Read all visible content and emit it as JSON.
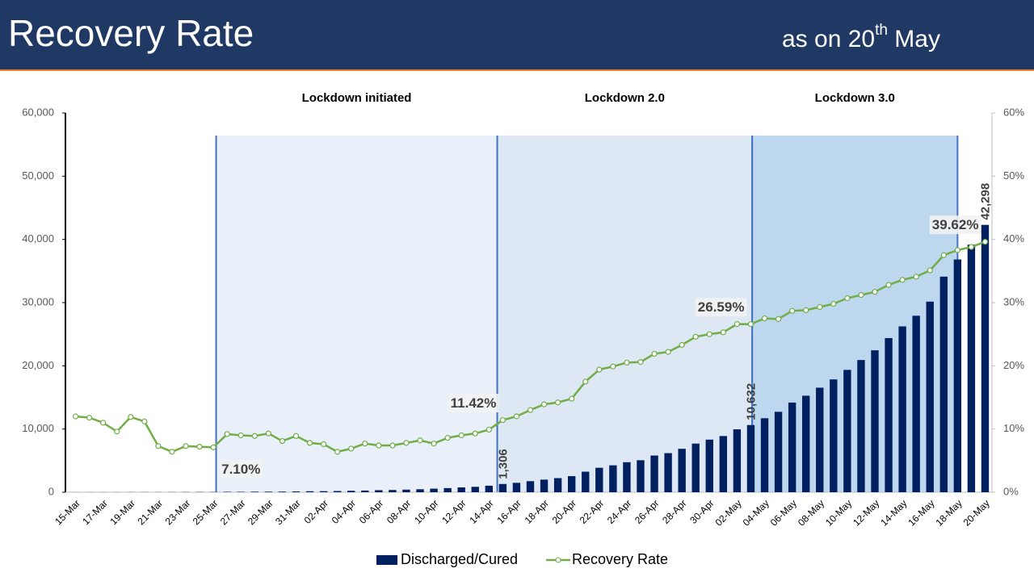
{
  "header": {
    "title": "Recovery Rate",
    "subtitle": {
      "before": "as on 20",
      "superscript": "th",
      "after": " May"
    }
  },
  "chart_data": {
    "type": "bar_line",
    "categories": [
      "15-Mar",
      null,
      "17-Mar",
      null,
      "19-Mar",
      null,
      "21-Mar",
      null,
      "23-Mar",
      null,
      "25-Mar",
      null,
      "27-Mar",
      null,
      "29-Mar",
      null,
      "31-Mar",
      null,
      "02-Apr",
      null,
      "04-Apr",
      null,
      "06-Apr",
      null,
      "08-Apr",
      null,
      "10-Apr",
      null,
      "12-Apr",
      null,
      "14-Apr",
      null,
      "16-Apr",
      null,
      "18-Apr",
      null,
      "20-Apr",
      null,
      "22-Apr",
      null,
      "24-Apr",
      null,
      "26-Apr",
      null,
      "28-Apr",
      null,
      "30-Apr",
      null,
      "02-May",
      null,
      "04-May",
      null,
      "06-May",
      null,
      "08-May",
      null,
      "10-May",
      null,
      "12-May",
      null,
      "14-May",
      null,
      "16-May",
      null,
      "18-May",
      null,
      "20-May"
    ],
    "series": [
      {
        "name": "Discharged/Cured",
        "type": "bar",
        "color": "#002060",
        "values": [
          13,
          14,
          15,
          14,
          20,
          23,
          23,
          27,
          35,
          40,
          43,
          66,
          67,
          85,
          96,
          102,
          124,
          156,
          169,
          191,
          229,
          267,
          325,
          352,
          411,
          473,
          565,
          654,
          768,
          857,
          1036,
          1306,
          1489,
          1749,
          1992,
          2231,
          2546,
          3252,
          3869,
          4258,
          4749,
          5063,
          5804,
          6185,
          6869,
          7696,
          8325,
          8889,
          9951,
          10632,
          11707,
          12727,
          14183,
          15267,
          16540,
          17847,
          19358,
          20917,
          22455,
          24386,
          26235,
          27920,
          30153,
          34109,
          36824,
          39174,
          42298
        ],
        "value_labels": [
          null,
          null,
          null,
          null,
          null,
          null,
          null,
          null,
          null,
          null,
          null,
          null,
          null,
          null,
          null,
          null,
          null,
          null,
          null,
          null,
          null,
          null,
          null,
          null,
          null,
          null,
          null,
          null,
          null,
          null,
          null,
          "1,306",
          null,
          null,
          null,
          null,
          null,
          null,
          null,
          null,
          null,
          null,
          null,
          null,
          null,
          null,
          null,
          null,
          null,
          "10,632",
          null,
          null,
          null,
          null,
          null,
          null,
          null,
          null,
          null,
          null,
          null,
          null,
          null,
          null,
          null,
          null,
          "42,298"
        ]
      },
      {
        "name": "Recovery Rate",
        "type": "line",
        "axis": "y2",
        "color": "#70ad47",
        "values": [
          12.0,
          11.8,
          11.0,
          9.6,
          11.9,
          11.2,
          7.3,
          6.4,
          7.3,
          7.2,
          7.1,
          9.2,
          9.0,
          8.9,
          9.3,
          8.1,
          8.9,
          7.8,
          7.6,
          6.4,
          6.9,
          7.7,
          7.4,
          7.4,
          7.8,
          8.2,
          7.7,
          8.6,
          9.0,
          9.3,
          9.9,
          11.42,
          12.0,
          13.0,
          13.9,
          14.2,
          14.8,
          17.5,
          19.4,
          19.9,
          20.5,
          20.6,
          21.9,
          22.2,
          23.3,
          24.6,
          25.0,
          25.3,
          26.6,
          26.59,
          27.5,
          27.4,
          28.7,
          28.8,
          29.3,
          29.8,
          30.7,
          31.2,
          31.7,
          32.8,
          33.6,
          34.1,
          35.1,
          37.5,
          38.3,
          38.8,
          39.62
        ],
        "value_labels": [
          null,
          null,
          null,
          null,
          null,
          null,
          null,
          null,
          null,
          null,
          "7.10%",
          null,
          null,
          null,
          null,
          null,
          null,
          null,
          null,
          null,
          null,
          null,
          null,
          null,
          null,
          null,
          null,
          null,
          null,
          null,
          null,
          "11.42%",
          null,
          null,
          null,
          null,
          null,
          null,
          null,
          null,
          null,
          null,
          null,
          null,
          null,
          null,
          null,
          null,
          null,
          "26.59%",
          null,
          null,
          null,
          null,
          null,
          null,
          null,
          null,
          null,
          null,
          null,
          null,
          null,
          null,
          null,
          null,
          "39.62%"
        ]
      }
    ],
    "ylim": [
      0,
      60000
    ],
    "yticks": [
      0,
      {
        "value": 10000,
        "label": "10,000"
      },
      {
        "value": 20000,
        "label": "20,000"
      },
      {
        "value": 30000,
        "label": "30,000"
      },
      {
        "value": 40000,
        "label": "40,000"
      },
      {
        "value": 50000,
        "label": "50,000"
      },
      {
        "value": 60000,
        "label": "60,000"
      }
    ],
    "y2lim": [
      0,
      60
    ],
    "y2ticks": [
      {
        "value": 0,
        "label": "0%"
      },
      {
        "value": 10,
        "label": "10%"
      },
      {
        "value": 20,
        "label": "20%"
      },
      {
        "value": 30,
        "label": "30%"
      },
      {
        "value": 40,
        "label": "40%"
      },
      {
        "value": 50,
        "label": "50%"
      },
      {
        "value": 60,
        "label": "60%"
      }
    ],
    "shaded_regions": [
      {
        "label": "Lockdown initiated",
        "start": 10.7,
        "end": 31.1,
        "color": "#e9f0f9"
      },
      {
        "label": "Lockdown 2.0",
        "start": 31.1,
        "end": 49.6,
        "color": "#dde8f4"
      },
      {
        "label": "Lockdown 3.0",
        "start": 49.6,
        "end": 64.5,
        "color": "#bdd7ee"
      }
    ],
    "region_line_color": "#4472c4",
    "legend": "bottom"
  }
}
